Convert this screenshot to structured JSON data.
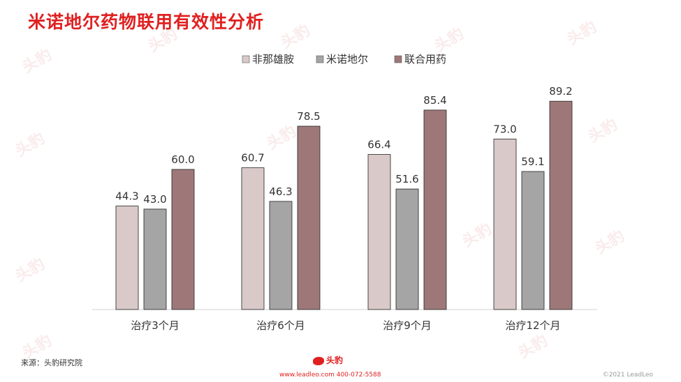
{
  "title": "米诺地尔药物联用有效性分析",
  "chart_data": {
    "type": "bar",
    "categories": [
      "治疗3个月",
      "治疗6个月",
      "治疗9个月",
      "治疗12个月"
    ],
    "series": [
      {
        "name": "非那雄胺",
        "color": "#d9c9c9",
        "values": [
          44.3,
          60.7,
          66.4,
          73.0
        ]
      },
      {
        "name": "米诺地尔",
        "color": "#a5a5a5",
        "values": [
          43.0,
          46.3,
          51.6,
          59.1
        ]
      },
      {
        "name": "联合用药",
        "color": "#9e7878",
        "values": [
          60.0,
          78.5,
          85.4,
          89.2
        ]
      }
    ],
    "ylim": [
      0,
      100
    ],
    "legend": "top-center",
    "grid": false
  },
  "footer": {
    "source": "来源：头豹研究院",
    "logo": "头豹",
    "contact": "www.leadleo.com  400-072-5588",
    "copyright": "©2021 LeadLeo"
  }
}
